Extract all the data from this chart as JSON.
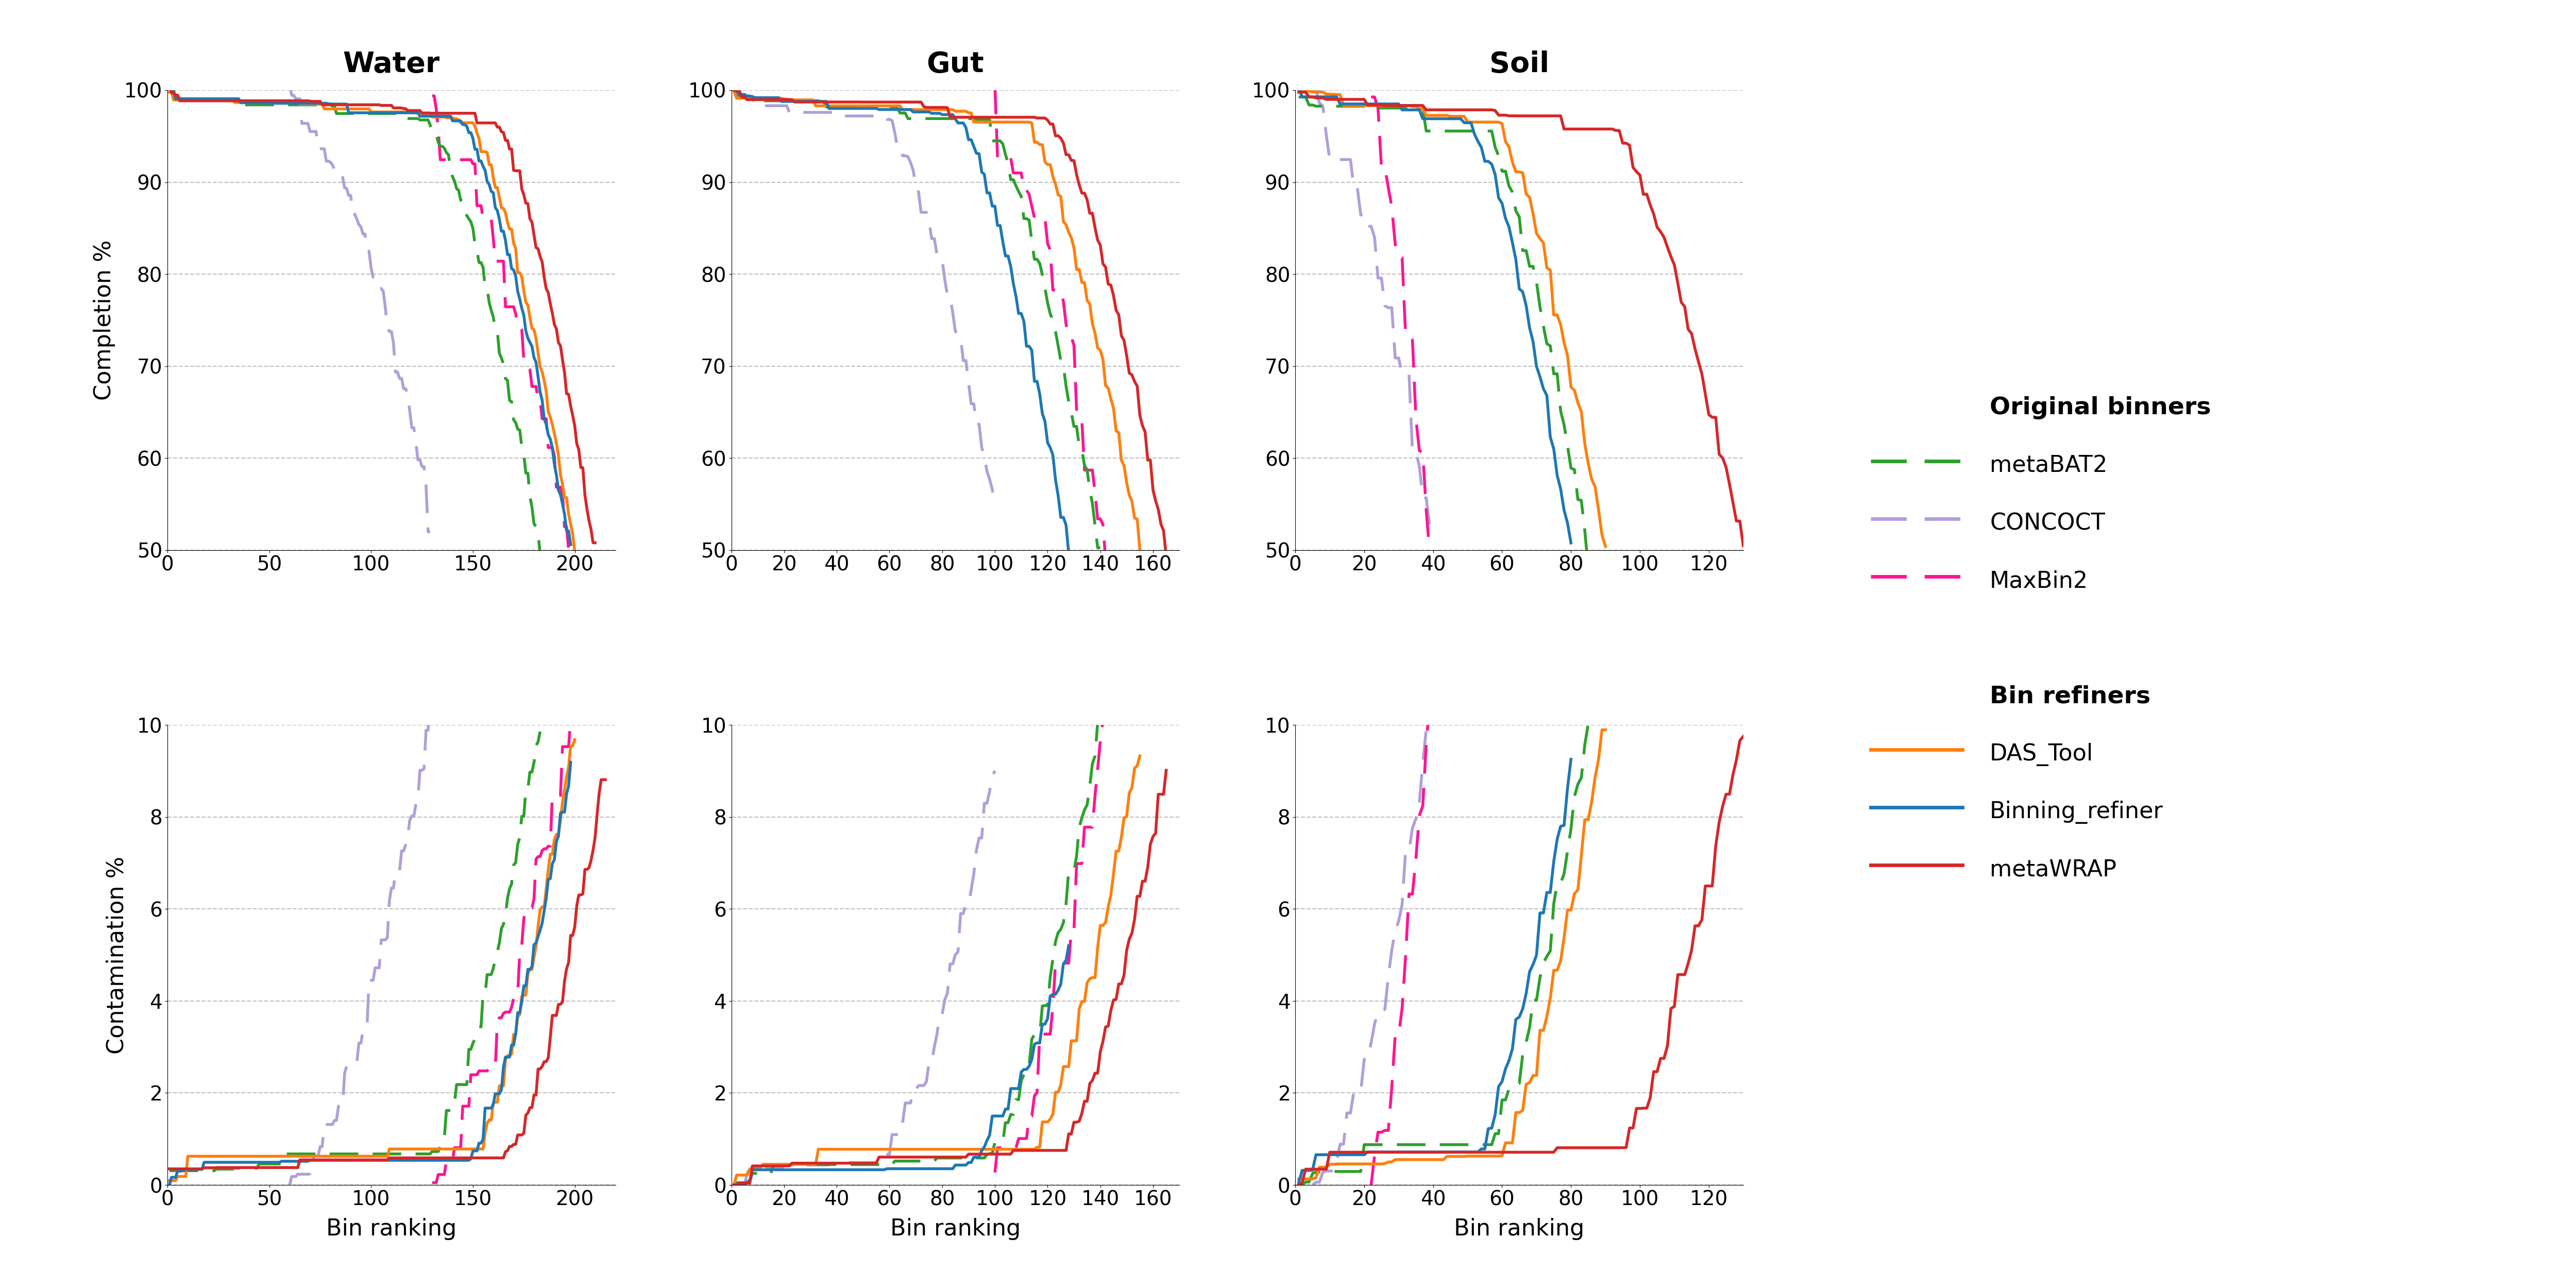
{
  "titles": [
    "Water",
    "Gut",
    "Soil"
  ],
  "completion_ylim": [
    50,
    100
  ],
  "contamination_ylim": [
    0,
    10
  ],
  "completion_yticks": [
    50,
    60,
    70,
    80,
    90,
    100
  ],
  "contamination_yticks": [
    0,
    2,
    4,
    6,
    8,
    10
  ],
  "water_xlim": 220,
  "gut_xlim": 170,
  "soil_xlim": 130,
  "water_xticks": [
    0,
    50,
    100,
    150,
    200
  ],
  "gut_xticks": [
    0,
    20,
    40,
    60,
    80,
    100,
    120,
    140,
    160
  ],
  "soil_xticks": [
    0,
    20,
    40,
    60,
    80,
    100,
    120
  ],
  "colors": {
    "metaBAT2": "#2ca02c",
    "CONCOCT": "#b09fd8",
    "MaxBin2": "#ff1493",
    "DAS_Tool": "#ff7f0e",
    "Binning_refiner": "#1f77b4",
    "metaWRAP": "#d62728"
  }
}
